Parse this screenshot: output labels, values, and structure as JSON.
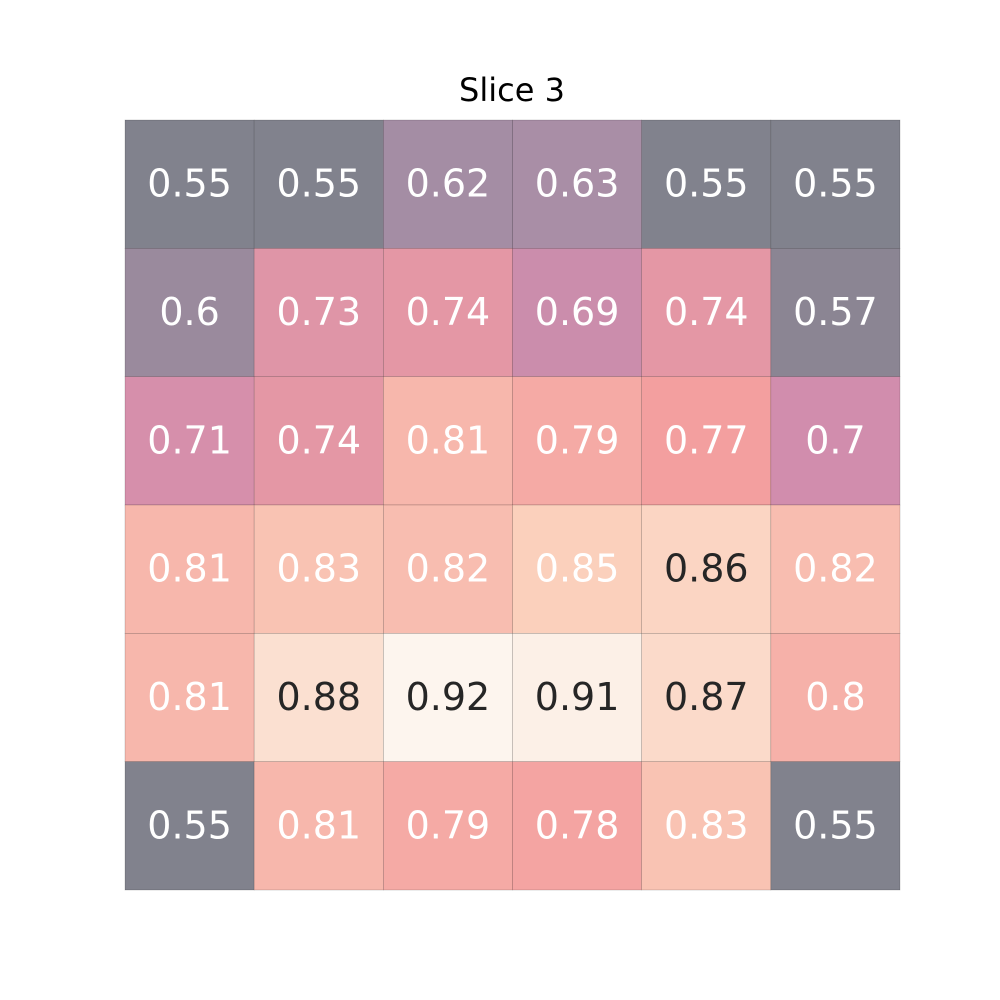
{
  "chart_data": {
    "type": "heatmap",
    "title": "Slice 3",
    "colormap": "rocket",
    "annotate": true,
    "values": [
      [
        0.55,
        0.55,
        0.62,
        0.63,
        0.55,
        0.55
      ],
      [
        0.6,
        0.73,
        0.74,
        0.69,
        0.74,
        0.57
      ],
      [
        0.71,
        0.74,
        0.81,
        0.79,
        0.77,
        0.7
      ],
      [
        0.81,
        0.83,
        0.82,
        0.85,
        0.86,
        0.82
      ],
      [
        0.81,
        0.88,
        0.92,
        0.91,
        0.87,
        0.8
      ],
      [
        0.55,
        0.81,
        0.79,
        0.78,
        0.83,
        0.55
      ]
    ]
  }
}
